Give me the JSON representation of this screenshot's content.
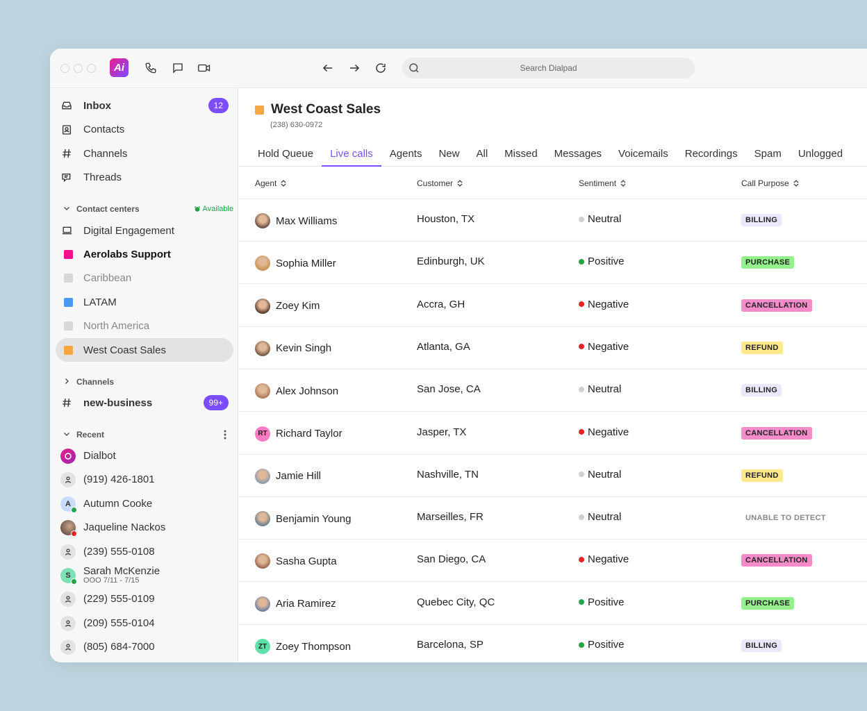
{
  "toolbar": {
    "search_placeholder": "Search Dialpad",
    "logo": "Ai"
  },
  "sidebar": {
    "nav": [
      {
        "label": "Inbox",
        "icon": "inbox-icon",
        "badge": "12"
      },
      {
        "label": "Contacts",
        "icon": "contacts-icon"
      },
      {
        "label": "Channels",
        "icon": "hash-icon"
      },
      {
        "label": "Threads",
        "icon": "threads-icon"
      }
    ],
    "contact_centers": {
      "label": "Contact centers",
      "status": "Available",
      "items": [
        {
          "label": "Digital Engagement",
          "color": "",
          "icon": "laptop-icon"
        },
        {
          "label": "Aerolabs Support",
          "color": "#f0128c"
        },
        {
          "label": "Caribbean",
          "color": "#d8d8d8"
        },
        {
          "label": "LATAM",
          "color": "#4a9af5"
        },
        {
          "label": "North America",
          "color": "#d8d8d8"
        },
        {
          "label": "West Coast Sales",
          "color": "#f5a742"
        }
      ]
    },
    "channels": {
      "label": "Channels",
      "items": [
        {
          "label": "new-business",
          "badge": "99+"
        }
      ]
    },
    "recent": {
      "label": "Recent",
      "items": [
        {
          "label": "Dialbot",
          "type": "bot"
        },
        {
          "label": "(919) 426-1801",
          "type": "person"
        },
        {
          "label": "Autumn Cooke",
          "type": "initial",
          "initial": "A",
          "presence": "#22a447",
          "bg": "#c9dbff"
        },
        {
          "label": "Jaqueline Nackos",
          "type": "photo",
          "presence": "#e52424"
        },
        {
          "label": "(239) 555-0108",
          "type": "person"
        },
        {
          "label": "Sarah McKenzie",
          "sub": "OOO 7/11 - 7/15",
          "type": "initial",
          "initial": "S",
          "presence": "#22a447",
          "bg": "#7de0b4"
        },
        {
          "label": "(229) 555-0109",
          "type": "person"
        },
        {
          "label": "(209) 555-0104",
          "type": "person"
        },
        {
          "label": "(805) 684-7000",
          "type": "person"
        }
      ]
    }
  },
  "main": {
    "title": "West Coast Sales",
    "phone": "(238) 630-0972",
    "tabs": [
      "Hold Queue",
      "Live calls",
      "Agents",
      "New",
      "All",
      "Missed",
      "Messages",
      "Voicemails",
      "Recordings",
      "Spam",
      "Unlogged"
    ],
    "active_tab": 1,
    "columns": [
      "Agent",
      "Customer",
      "Sentiment",
      "Call Purpose"
    ],
    "rows": [
      {
        "agent": "Max Williams",
        "customer": "Houston, TX",
        "sentiment": "Neutral",
        "purpose": "BILLING"
      },
      {
        "agent": "Sophia Miller",
        "customer": "Edinburgh, UK",
        "sentiment": "Positive",
        "purpose": "PURCHASE"
      },
      {
        "agent": "Zoey Kim",
        "customer": "Accra, GH",
        "sentiment": "Negative",
        "purpose": "CANCELLATION"
      },
      {
        "agent": "Kevin Singh",
        "customer": "Atlanta, GA",
        "sentiment": "Negative",
        "purpose": "REFUND"
      },
      {
        "agent": "Alex Johnson",
        "customer": "San Jose, CA",
        "sentiment": "Neutral",
        "purpose": "BILLING"
      },
      {
        "agent": "Richard Taylor",
        "initials": "RT",
        "customer": "Jasper, TX",
        "sentiment": "Negative",
        "purpose": "CANCELLATION"
      },
      {
        "agent": "Jamie Hill",
        "customer": "Nashville, TN",
        "sentiment": "Neutral",
        "purpose": "REFUND"
      },
      {
        "agent": "Benjamin Young",
        "customer": "Marseilles, FR",
        "sentiment": "Neutral",
        "purpose": "UNABLE TO DETECT"
      },
      {
        "agent": "Sasha Gupta",
        "customer": "San Diego, CA",
        "sentiment": "Negative",
        "purpose": "CANCELLATION"
      },
      {
        "agent": "Aria Ramirez",
        "customer": "Quebec City, QC",
        "sentiment": "Positive",
        "purpose": "PURCHASE"
      },
      {
        "agent": "Zoey Thompson",
        "initials": "ZT",
        "customer": "Barcelona, SP",
        "sentiment": "Positive",
        "purpose": "BILLING"
      }
    ]
  },
  "colors": {
    "accent": "#7c4dff",
    "positive": "#22a447",
    "negative": "#e52424",
    "neutral": "#cfcfcf",
    "BILLING": "#ebe8fb",
    "PURCHASE": "#93f08c",
    "CANCELLATION": "#f58bc9",
    "REFUND": "#ffe98a",
    "UNABLE TO DETECT": "transparent"
  }
}
